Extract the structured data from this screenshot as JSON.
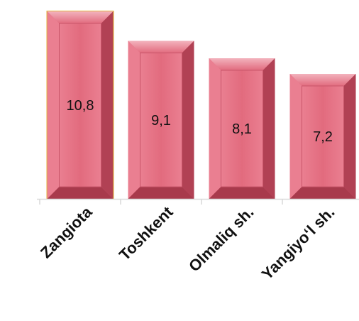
{
  "chart_data": {
    "type": "bar",
    "categories": [
      "Zangiota",
      "Toshkent",
      "Olmaliq sh.",
      "Yangiyo‘l sh."
    ],
    "values": [
      10.8,
      9.1,
      8.1,
      7.2
    ],
    "value_labels": [
      "10,8",
      "9,1",
      "8,1",
      "7,2"
    ],
    "ylim": [
      0,
      11.5
    ],
    "grid": false,
    "legend": "none",
    "colors": {
      "bar_fill": "#e26b7e",
      "bar_inner": "#ea7f91",
      "bar_edge_dark": "#a83a4c",
      "bar_edge_light": "#f3b3bd",
      "highlight_outline": "#e3b23c",
      "axis": "#d9d9d9"
    }
  }
}
